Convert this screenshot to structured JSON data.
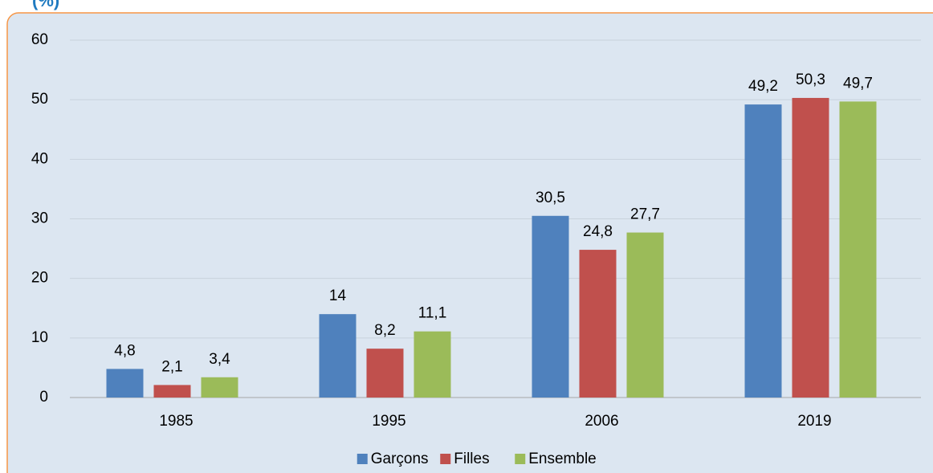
{
  "chart_data": {
    "type": "bar",
    "y_label": "(%)",
    "categories": [
      "1985",
      "1995",
      "2006",
      "2019"
    ],
    "series": [
      {
        "name": "Garçons",
        "color": "#4f81bd",
        "values": [
          4.8,
          14,
          30.5,
          49.2
        ],
        "value_labels": [
          "4,8",
          "14",
          "30,5",
          "49,2"
        ]
      },
      {
        "name": "Filles",
        "color": "#c0504d",
        "values": [
          2.1,
          8.2,
          24.8,
          50.3
        ],
        "value_labels": [
          "2,1",
          "8,2",
          "24,8",
          "50,3"
        ]
      },
      {
        "name": "Ensemble",
        "color": "#9bbb59",
        "values": [
          3.4,
          11.1,
          27.7,
          49.7
        ],
        "value_labels": [
          "3,4",
          "11,1",
          "27,7",
          "49,7"
        ]
      }
    ],
    "ylim": [
      0,
      60
    ],
    "yticks": [
      0,
      10,
      20,
      30,
      40,
      50,
      60
    ],
    "grid": true,
    "legend": "bottom"
  }
}
